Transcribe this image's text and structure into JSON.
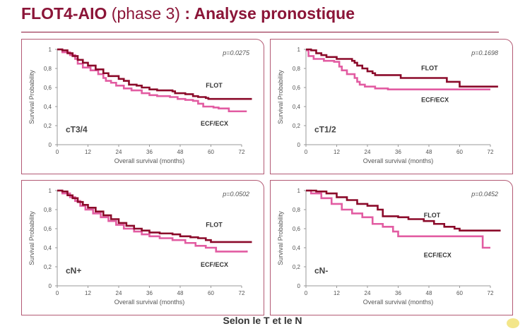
{
  "header": {
    "title_bold": "FLOT4-AIO",
    "title_light": " (phase 3) ",
    "title_rest": ": Analyse pronostique"
  },
  "footer": "Selon le T et le N",
  "colors": {
    "flot": "#8b0a2a",
    "ecf": "#e25ca2",
    "title": "#8b1538"
  },
  "chart_data": [
    {
      "type": "line",
      "subgroup": "cT3/4",
      "p_value": "p=0.0275",
      "xlabel": "Overall survival (months)",
      "ylabel": "Survival Probability",
      "xticks": [
        "0",
        "12",
        "24",
        "36",
        "48",
        "60",
        "72"
      ],
      "yticks": [
        "0",
        "0,2",
        "0,4",
        "0,6",
        "0,8",
        "1"
      ],
      "xlim": [
        0,
        72
      ],
      "ylim": [
        0,
        1
      ],
      "series": [
        {
          "name": "FLOT",
          "points": [
            [
              0,
              1
            ],
            [
              2,
              0.99
            ],
            [
              4,
              0.96
            ],
            [
              6,
              0.93
            ],
            [
              8,
              0.89
            ],
            [
              10,
              0.86
            ],
            [
              12,
              0.83
            ],
            [
              15,
              0.79
            ],
            [
              18,
              0.75
            ],
            [
              20,
              0.72
            ],
            [
              24,
              0.69
            ],
            [
              26,
              0.67
            ],
            [
              28,
              0.63
            ],
            [
              31,
              0.62
            ],
            [
              33,
              0.6
            ],
            [
              36,
              0.58
            ],
            [
              39,
              0.57
            ],
            [
              45,
              0.56
            ],
            [
              46,
              0.54
            ],
            [
              50,
              0.53
            ],
            [
              53,
              0.51
            ],
            [
              55,
              0.5
            ],
            [
              58,
              0.49
            ],
            [
              59,
              0.48
            ],
            [
              76,
              0.48
            ]
          ]
        },
        {
          "name": "ECF/ECX",
          "points": [
            [
              0,
              1
            ],
            [
              2,
              0.97
            ],
            [
              5,
              0.94
            ],
            [
              7,
              0.9
            ],
            [
              8,
              0.85
            ],
            [
              10,
              0.81
            ],
            [
              13,
              0.78
            ],
            [
              16,
              0.74
            ],
            [
              18,
              0.7
            ],
            [
              19,
              0.67
            ],
            [
              21,
              0.65
            ],
            [
              23,
              0.62
            ],
            [
              26,
              0.59
            ],
            [
              29,
              0.57
            ],
            [
              33,
              0.54
            ],
            [
              36,
              0.52
            ],
            [
              39,
              0.51
            ],
            [
              44,
              0.5
            ],
            [
              47,
              0.48
            ],
            [
              50,
              0.47
            ],
            [
              53,
              0.46
            ],
            [
              55,
              0.43
            ],
            [
              57,
              0.4
            ],
            [
              61,
              0.39
            ],
            [
              63,
              0.38
            ],
            [
              67,
              0.35
            ],
            [
              74,
              0.35
            ]
          ]
        }
      ]
    },
    {
      "type": "line",
      "subgroup": "cT1/2",
      "p_value": "p=0.1698",
      "xlabel": "Overall survival (months)",
      "ylabel": "Survival Probability",
      "xticks": [
        "0",
        "12",
        "24",
        "36",
        "48",
        "60",
        "72"
      ],
      "yticks": [
        "0",
        "0,2",
        "0,4",
        "0,6",
        "0,8",
        "1"
      ],
      "xlim": [
        0,
        72
      ],
      "ylim": [
        0,
        1
      ],
      "series": [
        {
          "name": "FLOT",
          "points": [
            [
              0,
              1
            ],
            [
              2,
              0.99
            ],
            [
              4,
              0.96
            ],
            [
              6,
              0.94
            ],
            [
              8,
              0.92
            ],
            [
              12,
              0.9
            ],
            [
              18,
              0.88
            ],
            [
              19,
              0.86
            ],
            [
              20,
              0.83
            ],
            [
              22,
              0.8
            ],
            [
              24,
              0.77
            ],
            [
              26,
              0.75
            ],
            [
              27,
              0.73
            ],
            [
              37,
              0.7
            ],
            [
              55,
              0.66
            ],
            [
              60,
              0.61
            ],
            [
              75,
              0.61
            ]
          ]
        },
        {
          "name": "ECF/ECX",
          "points": [
            [
              0,
              0.99
            ],
            [
              1,
              0.93
            ],
            [
              3,
              0.9
            ],
            [
              7,
              0.88
            ],
            [
              11,
              0.87
            ],
            [
              13,
              0.82
            ],
            [
              14,
              0.78
            ],
            [
              16,
              0.74
            ],
            [
              19,
              0.7
            ],
            [
              20,
              0.66
            ],
            [
              21,
              0.63
            ],
            [
              23,
              0.61
            ],
            [
              27,
              0.59
            ],
            [
              32,
              0.58
            ],
            [
              72,
              0.58
            ]
          ]
        }
      ]
    },
    {
      "type": "line",
      "subgroup": "cN+",
      "p_value": "p=0.0502",
      "xlabel": "Overall survival (months)",
      "ylabel": "Survival Probability",
      "xticks": [
        "0",
        "12",
        "24",
        "36",
        "48",
        "60",
        "72"
      ],
      "yticks": [
        "0",
        "0,2",
        "0,4",
        "0,6",
        "0,8",
        "1"
      ],
      "xlim": [
        0,
        72
      ],
      "ylim": [
        0,
        1
      ],
      "series": [
        {
          "name": "FLOT",
          "points": [
            [
              0,
              1
            ],
            [
              2,
              0.99
            ],
            [
              4,
              0.95
            ],
            [
              6,
              0.92
            ],
            [
              8,
              0.88
            ],
            [
              10,
              0.85
            ],
            [
              12,
              0.82
            ],
            [
              15,
              0.78
            ],
            [
              18,
              0.74
            ],
            [
              21,
              0.7
            ],
            [
              24,
              0.66
            ],
            [
              27,
              0.63
            ],
            [
              30,
              0.6
            ],
            [
              33,
              0.58
            ],
            [
              36,
              0.56
            ],
            [
              40,
              0.55
            ],
            [
              45,
              0.54
            ],
            [
              48,
              0.52
            ],
            [
              52,
              0.51
            ],
            [
              55,
              0.5
            ],
            [
              58,
              0.48
            ],
            [
              60,
              0.46
            ],
            [
              76,
              0.46
            ]
          ]
        },
        {
          "name": "ECF/ECX",
          "points": [
            [
              0,
              1
            ],
            [
              2,
              0.97
            ],
            [
              5,
              0.93
            ],
            [
              7,
              0.89
            ],
            [
              9,
              0.84
            ],
            [
              11,
              0.8
            ],
            [
              14,
              0.76
            ],
            [
              17,
              0.72
            ],
            [
              20,
              0.68
            ],
            [
              23,
              0.64
            ],
            [
              26,
              0.6
            ],
            [
              30,
              0.57
            ],
            [
              33,
              0.54
            ],
            [
              36,
              0.52
            ],
            [
              40,
              0.5
            ],
            [
              45,
              0.48
            ],
            [
              50,
              0.45
            ],
            [
              54,
              0.42
            ],
            [
              58,
              0.4
            ],
            [
              62,
              0.36
            ],
            [
              68,
              0.36
            ],
            [
              74,
              0.37
            ]
          ]
        }
      ]
    },
    {
      "type": "line",
      "subgroup": "cN-",
      "p_value": "p=0.0452",
      "xlabel": "Overall survival (months)",
      "ylabel": "Survival Probability",
      "xticks": [
        "0",
        "12",
        "24",
        "36",
        "48",
        "60",
        "72"
      ],
      "yticks": [
        "0",
        "0,2",
        "0,4",
        "0,6",
        "0,8",
        "1"
      ],
      "xlim": [
        0,
        72
      ],
      "ylim": [
        0,
        1
      ],
      "series": [
        {
          "name": "FLOT",
          "points": [
            [
              0,
              1
            ],
            [
              4,
              0.99
            ],
            [
              8,
              0.97
            ],
            [
              12,
              0.93
            ],
            [
              16,
              0.9
            ],
            [
              20,
              0.86
            ],
            [
              24,
              0.84
            ],
            [
              28,
              0.8
            ],
            [
              30,
              0.73
            ],
            [
              36,
              0.72
            ],
            [
              40,
              0.7
            ],
            [
              46,
              0.68
            ],
            [
              50,
              0.65
            ],
            [
              54,
              0.62
            ],
            [
              58,
              0.6
            ],
            [
              60,
              0.58
            ],
            [
              76,
              0.58
            ]
          ]
        },
        {
          "name": "ECF/ECX",
          "points": [
            [
              0,
              1
            ],
            [
              2,
              0.97
            ],
            [
              6,
              0.92
            ],
            [
              10,
              0.86
            ],
            [
              14,
              0.8
            ],
            [
              18,
              0.76
            ],
            [
              22,
              0.72
            ],
            [
              26,
              0.65
            ],
            [
              30,
              0.62
            ],
            [
              34,
              0.57
            ],
            [
              36,
              0.52
            ],
            [
              68,
              0.52
            ],
            [
              69,
              0.4
            ],
            [
              72,
              0.4
            ]
          ]
        }
      ]
    }
  ]
}
